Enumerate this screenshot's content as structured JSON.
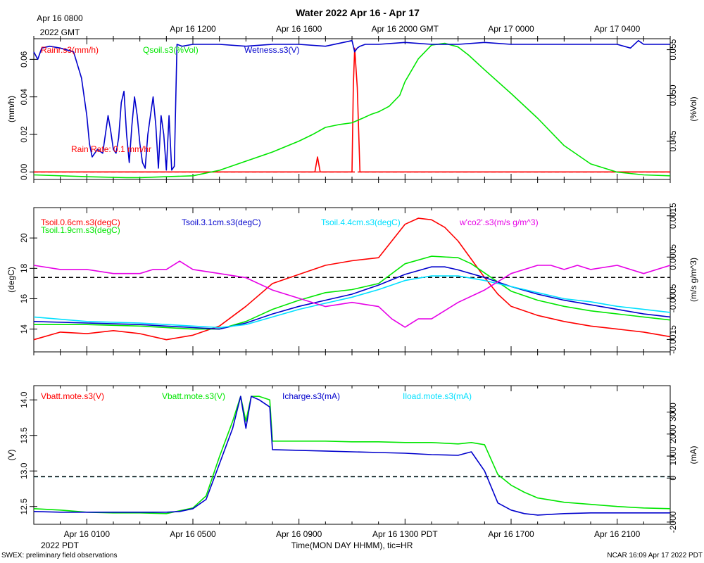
{
  "title": "Water 2022 Apr 16 - Apr 17",
  "top_time_labels": [
    "Apr 16 0800",
    "Apr 16 1200",
    "Apr 16 1600",
    "Apr 16 2000 GMT",
    "Apr 17 0000",
    "Apr 17 0400"
  ],
  "top_time_sublabel": "2022 GMT",
  "bottom_time_labels": [
    "Apr 16 0100",
    "Apr 16 0500",
    "Apr 16 0900",
    "Apr 16 1300 PDT",
    "Apr 16 1700",
    "Apr 16 2100"
  ],
  "bottom_time_sublabel": "2022 PDT",
  "xaxis_label": "Time(MON DAY HHMM), tic=HR",
  "footer_left": "SWEX: preliminary field observations",
  "footer_right": "NCAR 16:09 Apr 17 2022 PDT",
  "colors": {
    "red": "#ff0000",
    "green": "#00e600",
    "blue": "#0000cc",
    "cyan": "#00e0ff",
    "magenta": "#e600e6",
    "black": "#000000"
  },
  "chart_data": [
    {
      "type": "line",
      "panel": "rain-soil-moisture",
      "x_unit": "hours since Apr 16 0000 PDT",
      "xlim": [
        0,
        24
      ],
      "left_axis": {
        "label": "(mm/h)",
        "ylim": [
          -0.004,
          0.071
        ],
        "ticks": [
          "0.00",
          "0.02",
          "0.04",
          "0.06"
        ],
        "tick_values": [
          0,
          0.02,
          0.04,
          0.06
        ]
      },
      "right_axis": {
        "label": "(%Vol)",
        "ylim": [
          0.0408,
          0.0562
        ],
        "ticks": [
          "0.045",
          "0.050",
          "0.055"
        ],
        "tick_values": [
          0.045,
          0.05,
          0.055
        ]
      },
      "reference_lines": [
        {
          "axis": "left",
          "value": 0,
          "color": "red",
          "style": "dashed"
        }
      ],
      "annotations": [
        {
          "text": "Rain Rate: 0.1 mm/hr",
          "color": "red"
        }
      ],
      "series": [
        {
          "name": "Rainr.s3(mm/h)",
          "axis": "left",
          "color": "red",
          "x": [
            0,
            10.6,
            10.7,
            10.8,
            12.0,
            12.05,
            12.1,
            12.2,
            12.3,
            24
          ],
          "y": [
            0,
            0,
            0.008,
            0,
            0,
            0.046,
            0.066,
            0.045,
            0,
            0
          ]
        },
        {
          "name": "Qsoil.s3(%Vol)",
          "axis": "left_scaled_right",
          "color": "green",
          "x": [
            0,
            2,
            3.5,
            4,
            5,
            6,
            7,
            8,
            9,
            10,
            10.5,
            11,
            11.5,
            12,
            12.4,
            12.7,
            13,
            13.4,
            13.8,
            14,
            14.5,
            15,
            15.5,
            16,
            16.4,
            17,
            18,
            19,
            20,
            21,
            22,
            23,
            24
          ],
          "y": [
            0.0413,
            0.0411,
            0.041,
            0.041,
            0.0411,
            0.0412,
            0.0418,
            0.0428,
            0.0438,
            0.045,
            0.0457,
            0.0465,
            0.0468,
            0.047,
            0.0475,
            0.0479,
            0.0482,
            0.0488,
            0.05,
            0.0515,
            0.054,
            0.0555,
            0.0557,
            0.0553,
            0.0544,
            0.0528,
            0.0502,
            0.0475,
            0.0445,
            0.0425,
            0.0416,
            0.0413,
            0.0412
          ]
        },
        {
          "name": "Wetness.s3(V)",
          "axis": "left",
          "color": "blue",
          "x": [
            0,
            0.15,
            0.3,
            0.6,
            1.0,
            1.5,
            1.8,
            2.0,
            2.1,
            2.2,
            2.4,
            2.6,
            2.7,
            2.8,
            2.9,
            3.0,
            3.1,
            3.2,
            3.3,
            3.4,
            3.5,
            3.6,
            3.7,
            3.8,
            3.9,
            4.0,
            4.1,
            4.2,
            4.3,
            4.4,
            4.5,
            4.6,
            4.7,
            4.8,
            4.9,
            5.0,
            5.1,
            5.2,
            5.3,
            5.4,
            5.6,
            6,
            7,
            8,
            9,
            10,
            11,
            12,
            12.1,
            12.2,
            12.3,
            12.5,
            13,
            14,
            15,
            16,
            17,
            18,
            19,
            20,
            21,
            22,
            22.5,
            22.8,
            23,
            23.5,
            24
          ],
          "y": [
            0.064,
            0.06,
            0.066,
            0.067,
            0.066,
            0.064,
            0.05,
            0.03,
            0.015,
            0.008,
            0.012,
            0.01,
            0.02,
            0.03,
            0.022,
            0.012,
            0.01,
            0.018,
            0.037,
            0.043,
            0.02,
            0.005,
            0.025,
            0.04,
            0.03,
            0.015,
            0.005,
            0.002,
            0.02,
            0.03,
            0.04,
            0.025,
            0.002,
            0.03,
            0.02,
            0.001,
            0.03,
            0.001,
            0.003,
            0.068,
            0.067,
            0.068,
            0.068,
            0.067,
            0.068,
            0.068,
            0.067,
            0.07,
            0.064,
            0.066,
            0.067,
            0.068,
            0.068,
            0.069,
            0.068,
            0.068,
            0.069,
            0.068,
            0.068,
            0.068,
            0.068,
            0.068,
            0.066,
            0.07,
            0.068,
            0.068,
            0.068
          ]
        }
      ]
    },
    {
      "type": "line",
      "panel": "soil-temperature-flux",
      "x_unit": "hours since Apr 16 0000 PDT",
      "xlim": [
        0,
        24
      ],
      "left_axis": {
        "label": "(degC)",
        "ylim": [
          12.5,
          22
        ],
        "ticks": [
          "14",
          "16",
          "18",
          "20"
        ],
        "tick_values": [
          14,
          16,
          18,
          20
        ]
      },
      "right_axis": {
        "label": "(m/s g/m^3)",
        "ylim": [
          -0.0018,
          0.0017
        ],
        "ticks": [
          "-0.0015",
          "-0.0005",
          "0.0005",
          "0.0015"
        ],
        "tick_values": [
          -0.0015,
          -0.0005,
          0.0005,
          0.0015
        ]
      },
      "reference_lines": [
        {
          "axis": "left",
          "value": 17.4,
          "color": "black",
          "style": "dashed"
        }
      ],
      "series": [
        {
          "name": "Tsoil.0.6cm.s3(degC)",
          "axis": "left",
          "color": "red",
          "x": [
            0,
            1,
            2,
            3,
            4,
            5,
            6,
            7,
            8,
            9,
            10,
            11,
            12,
            13,
            13.5,
            14,
            14.5,
            15,
            15.5,
            16,
            16.5,
            17,
            17.5,
            18,
            19,
            20,
            21,
            22,
            23,
            24
          ],
          "y": [
            13.3,
            13.8,
            13.7,
            13.9,
            13.7,
            13.3,
            13.6,
            14.2,
            15.5,
            17.0,
            17.6,
            18.2,
            18.5,
            18.7,
            19.8,
            20.9,
            21.3,
            21.2,
            20.7,
            19.8,
            18.6,
            17.4,
            16.3,
            15.5,
            14.9,
            14.5,
            14.2,
            14.0,
            13.8,
            13.5
          ]
        },
        {
          "name": "Tsoil.1.9cm.s3(degC)",
          "axis": "left",
          "color": "green",
          "x": [
            0,
            2,
            4,
            6,
            7,
            8,
            9,
            10,
            11,
            12,
            13,
            14,
            15,
            16,
            16.5,
            17,
            17.5,
            18,
            19,
            20,
            21,
            22,
            23,
            24
          ],
          "y": [
            14.3,
            14.3,
            14.2,
            14.0,
            14.0,
            14.5,
            15.3,
            15.9,
            16.4,
            16.6,
            17.0,
            18.3,
            18.8,
            18.7,
            18.3,
            17.7,
            17.1,
            16.5,
            15.9,
            15.5,
            15.2,
            15.0,
            14.8,
            14.6
          ]
        },
        {
          "name": "Tsoil.3.1cm.s3(degC)",
          "axis": "left",
          "color": "blue",
          "x": [
            0,
            2,
            4,
            6,
            7,
            8,
            9,
            10,
            11,
            12,
            13,
            14,
            15,
            15.5,
            16,
            17,
            18,
            19,
            20,
            21,
            22,
            23,
            24
          ],
          "y": [
            14.5,
            14.4,
            14.3,
            14.1,
            14.0,
            14.4,
            15.0,
            15.5,
            15.9,
            16.3,
            16.9,
            17.6,
            18.1,
            18.1,
            17.9,
            17.4,
            16.8,
            16.3,
            15.9,
            15.6,
            15.3,
            15.0,
            14.8
          ]
        },
        {
          "name": "Tsoil.4.4cm.s3(degC)",
          "axis": "left",
          "color": "cyan",
          "x": [
            0,
            2,
            4,
            6,
            7,
            8,
            9,
            10,
            11,
            12,
            13,
            14,
            15,
            16,
            17,
            18,
            19,
            20,
            21,
            22,
            23,
            24
          ],
          "y": [
            14.8,
            14.5,
            14.4,
            14.2,
            14.1,
            14.3,
            14.8,
            15.3,
            15.7,
            16.1,
            16.6,
            17.2,
            17.5,
            17.5,
            17.2,
            16.8,
            16.4,
            16.0,
            15.8,
            15.5,
            15.3,
            15.1
          ]
        },
        {
          "name": "w'co2'.s3(m/s g/m^3)",
          "axis": "right",
          "color": "magenta",
          "x": [
            0,
            1,
            2,
            3,
            4,
            4.5,
            5,
            5.5,
            6,
            7,
            8,
            9,
            10,
            11,
            12,
            13,
            13.5,
            14,
            14.5,
            15,
            16,
            17,
            18,
            19,
            19.5,
            20,
            20.5,
            21,
            22,
            23,
            24
          ],
          "y": [
            0.0003,
            0.0002,
            0.0002,
            0.0001,
            0.0001,
            0.0002,
            0.0002,
            0.0004,
            0.0002,
            0.0001,
            0.0,
            -0.0003,
            -0.0005,
            -0.0007,
            -0.0006,
            -0.0007,
            -0.001,
            -0.0012,
            -0.001,
            -0.001,
            -0.0006,
            -0.0003,
            0.0001,
            0.0003,
            0.0003,
            0.0002,
            0.0003,
            0.0002,
            0.0003,
            0.0001,
            0.0003
          ]
        }
      ]
    },
    {
      "type": "line",
      "panel": "battery-power",
      "x_unit": "hours since Apr 16 0000 PDT",
      "xlim": [
        0,
        24
      ],
      "left_axis": {
        "label": "(V)",
        "ylim": [
          12.25,
          14.2
        ],
        "ticks": [
          "12.5",
          "13.0",
          "13.5",
          "14.0"
        ],
        "tick_values": [
          12.5,
          13,
          13.5,
          14
        ]
      },
      "right_axis": {
        "label": "(mA)",
        "ylim": [
          -2100,
          4200
        ],
        "ticks": [
          "-2000",
          "0",
          "1000",
          "2000",
          "3000"
        ],
        "tick_values": [
          -2000,
          0,
          1000,
          2000,
          3000
        ]
      },
      "reference_lines": [
        {
          "axis": "left",
          "value": 12.92,
          "color": "cyan",
          "style": "dashed"
        },
        {
          "axis": "left",
          "value": 12.92,
          "color": "black",
          "style": "dashed"
        }
      ],
      "series": [
        {
          "name": "Vbatt.mote.s3(V)",
          "axis": "left",
          "color": "red",
          "x": [],
          "y": []
        },
        {
          "name": "Vbatt.mote.s3(V)",
          "axis": "left",
          "color": "green",
          "x": [
            0,
            1,
            2,
            3,
            4,
            5,
            5.5,
            6,
            6.5,
            7,
            7.5,
            7.8,
            8.0,
            8.2,
            8.5,
            8.9,
            9.0,
            10,
            11,
            12,
            13,
            14,
            15,
            16,
            16.5,
            17,
            17.5,
            18,
            18.5,
            19,
            20,
            21,
            22,
            23,
            24
          ],
          "y": [
            12.47,
            12.45,
            12.42,
            12.41,
            12.41,
            12.4,
            12.44,
            12.48,
            12.65,
            13.2,
            13.7,
            14.05,
            13.7,
            14.05,
            14.05,
            14.0,
            13.42,
            13.42,
            13.42,
            13.41,
            13.41,
            13.4,
            13.4,
            13.38,
            13.4,
            13.37,
            12.95,
            12.8,
            12.7,
            12.62,
            12.56,
            12.53,
            12.5,
            12.48,
            12.47
          ]
        },
        {
          "name": "Icharge.s3(mA)",
          "axis": "left",
          "color": "blue",
          "x": [
            0,
            1,
            2,
            3,
            4,
            5,
            5.5,
            6,
            6.5,
            7,
            7.5,
            7.8,
            8.0,
            8.2,
            8.5,
            8.9,
            9.0,
            10,
            11,
            12,
            13,
            14,
            15,
            16,
            16.5,
            17,
            17.5,
            18,
            18.5,
            19,
            20,
            21,
            22,
            23,
            24
          ],
          "y": [
            12.43,
            12.42,
            12.42,
            12.42,
            12.42,
            12.42,
            12.43,
            12.47,
            12.6,
            13.1,
            13.6,
            14.05,
            13.6,
            14.05,
            14.0,
            13.9,
            13.3,
            13.29,
            13.28,
            13.27,
            13.26,
            13.25,
            13.23,
            13.22,
            13.27,
            13.0,
            12.55,
            12.45,
            12.4,
            12.38,
            12.4,
            12.41,
            12.41,
            12.41,
            12.41
          ]
        },
        {
          "name": "Iload.mote.s3(mA)",
          "axis": "right",
          "color": "cyan",
          "x": [],
          "y": []
        }
      ]
    }
  ]
}
